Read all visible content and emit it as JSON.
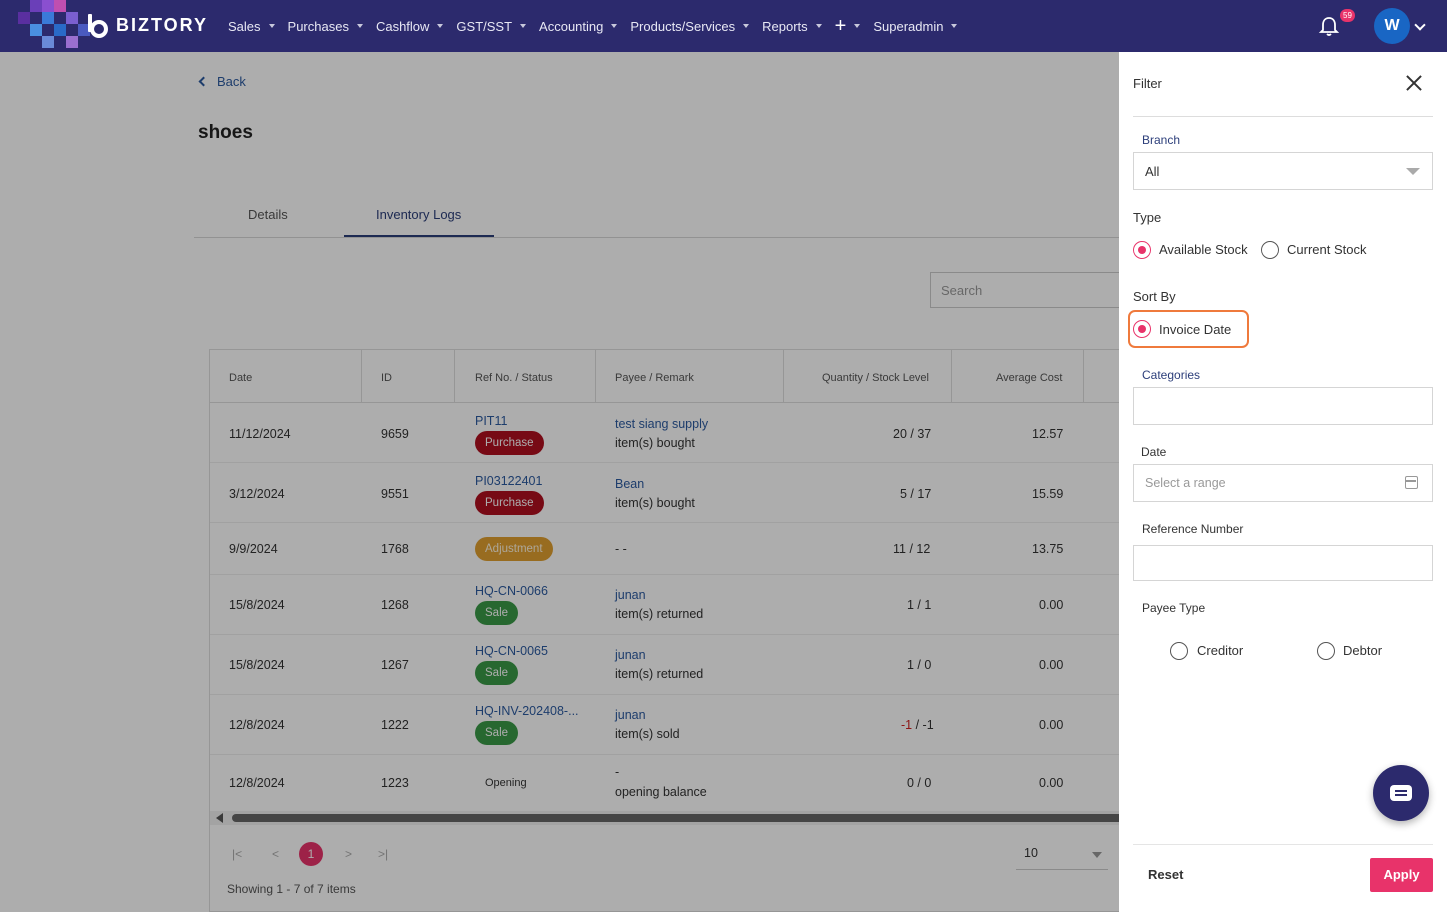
{
  "nav": {
    "brand": "BIZTORY",
    "items": [
      "Sales",
      "Purchases",
      "Cashflow",
      "GST/SST",
      "Accounting",
      "Products/Services",
      "Reports",
      "+",
      "Superadmin"
    ],
    "notification_count": "59",
    "avatar_initial": "W"
  },
  "page": {
    "back_label": "Back",
    "title": "shoes",
    "tabs": [
      "Details",
      "Inventory Logs"
    ],
    "active_tab": "Inventory Logs",
    "search_placeholder": "Search"
  },
  "table": {
    "headers": [
      "Date",
      "ID",
      "Ref No. / Status",
      "Payee / Remark",
      "Quantity / Stock Level",
      "Average Cost"
    ],
    "rows": [
      {
        "date": "11/12/2024",
        "id": "9659",
        "ref": "PIT11",
        "status": "Purchase",
        "payee": "test siang supply",
        "remark": "item(s) bought",
        "qty": "20 / 37",
        "cost": "12.57"
      },
      {
        "date": "3/12/2024",
        "id": "9551",
        "ref": "PI03122401",
        "status": "Purchase",
        "payee": "Bean",
        "remark": "item(s) bought",
        "qty": "5 / 17",
        "cost": "15.59"
      },
      {
        "date": "9/9/2024",
        "id": "1768",
        "ref": "",
        "status": "Adjustment",
        "payee": "",
        "remark": "- -",
        "qty": "11 / 12",
        "cost": "13.75"
      },
      {
        "date": "15/8/2024",
        "id": "1268",
        "ref": "HQ-CN-0066",
        "status": "Sale",
        "payee": "junan",
        "remark": "item(s) returned",
        "qty": "1 / 1",
        "cost": "0.00"
      },
      {
        "date": "15/8/2024",
        "id": "1267",
        "ref": "HQ-CN-0065",
        "status": "Sale",
        "payee": "junan",
        "remark": "item(s) returned",
        "qty": "1 / 0",
        "cost": "0.00"
      },
      {
        "date": "12/8/2024",
        "id": "1222",
        "ref": "HQ-INV-202408-...",
        "status": "Sale",
        "payee": "junan",
        "remark": "item(s) sold",
        "qty_neg": "-1",
        "qty_rest": " / -1",
        "cost": "0.00"
      },
      {
        "date": "12/8/2024",
        "id": "1223",
        "ref": "",
        "status": "Opening",
        "payee": "-",
        "remark": "opening balance",
        "qty": "0 / 0",
        "cost": "0.00"
      }
    ]
  },
  "pagination": {
    "first": "|<",
    "prev": "<",
    "current": "1",
    "next": ">",
    "last": ">|",
    "page_size": "10",
    "showing": "Showing 1 - 7 of 7 items"
  },
  "filter": {
    "title": "Filter",
    "branch_label": "Branch",
    "branch_value": "All",
    "type_label": "Type",
    "type_options": [
      "Available Stock",
      "Current Stock"
    ],
    "type_selected": "Available Stock",
    "sortby_label": "Sort By",
    "sortby_option": "Invoice Date",
    "categories_label": "Categories",
    "date_label": "Date",
    "date_placeholder": "Select a range",
    "refno_label": "Reference Number",
    "payee_type_label": "Payee Type",
    "payee_options": [
      "Creditor",
      "Debtor"
    ],
    "reset_label": "Reset",
    "apply_label": "Apply"
  },
  "colors": {
    "nav_bg": "#2c2a6d",
    "accent": "#e8336a",
    "highlight": "#ef7a3c",
    "purchase": "#b01020",
    "sale": "#3a9a48",
    "adjustment": "#e0a030"
  }
}
